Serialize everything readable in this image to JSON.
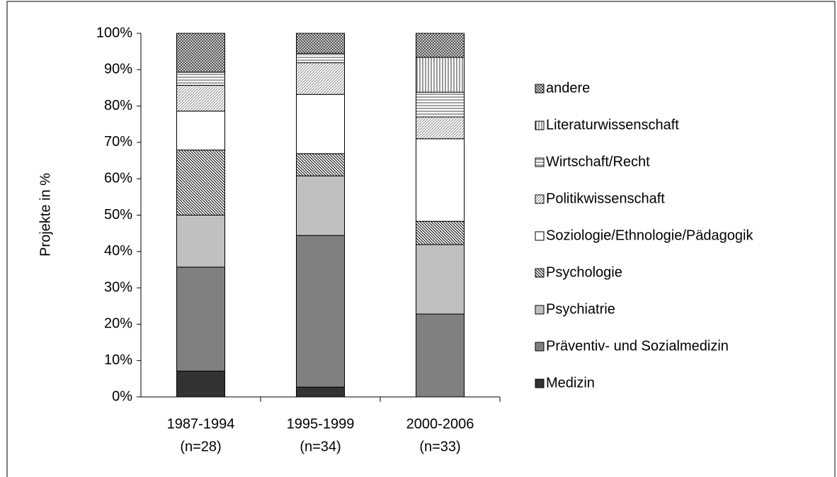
{
  "chart_data": {
    "type": "stacked_bar",
    "y_label": "Projekte in %",
    "categories": [
      "1987-1994",
      "1995-1999",
      "2000-2006"
    ],
    "category_sublabels": [
      "(n=28)",
      "(n=34)",
      "(n=33)"
    ],
    "ylim": [
      0,
      100
    ],
    "yticks": [
      {
        "value": 0,
        "label": "0%"
      },
      {
        "value": 10,
        "label": "10%"
      },
      {
        "value": 20,
        "label": "20%"
      },
      {
        "value": 30,
        "label": "30%"
      },
      {
        "value": 40,
        "label": "40%"
      },
      {
        "value": 50,
        "label": "50%"
      },
      {
        "value": 60,
        "label": "60%"
      },
      {
        "value": 70,
        "label": "70%"
      },
      {
        "value": 80,
        "label": "80%"
      },
      {
        "value": 90,
        "label": "90%"
      },
      {
        "value": 100,
        "label": "100%"
      }
    ],
    "series": [
      {
        "name": "Medizin",
        "color": "#333333",
        "values": [
          7.1,
          2.7,
          0
        ]
      },
      {
        "name": "Präventiv- und Sozialmedizin",
        "color": "#808080",
        "values": [
          28.6,
          41.7,
          22.8
        ]
      },
      {
        "name": "Psychiatrie",
        "color": "#c0c0c0",
        "values": [
          14.3,
          16.4,
          19.1
        ]
      },
      {
        "name": "Psychologie",
        "color": "#ffffff",
        "values": [
          17.9,
          6.1,
          6.4
        ]
      },
      {
        "name": "Soziologie/Ethnologie/Pädagogik",
        "color": "#ffffff",
        "values": [
          10.7,
          16.3,
          22.7
        ]
      },
      {
        "name": "Politikwissenschaft",
        "color": "#ffffff",
        "values": [
          7.1,
          8.7,
          6.0
        ]
      },
      {
        "name": "Wirtschaft/Recht",
        "color": "#ffffff",
        "values": [
          3.6,
          2.6,
          6.8
        ]
      },
      {
        "name": "Literaturwissenschaft",
        "color": "#ffffff",
        "values": [
          0,
          0,
          9.6
        ]
      },
      {
        "name": "andere",
        "color": "#ffffff",
        "values": [
          10.7,
          5.5,
          6.6
        ]
      }
    ]
  }
}
